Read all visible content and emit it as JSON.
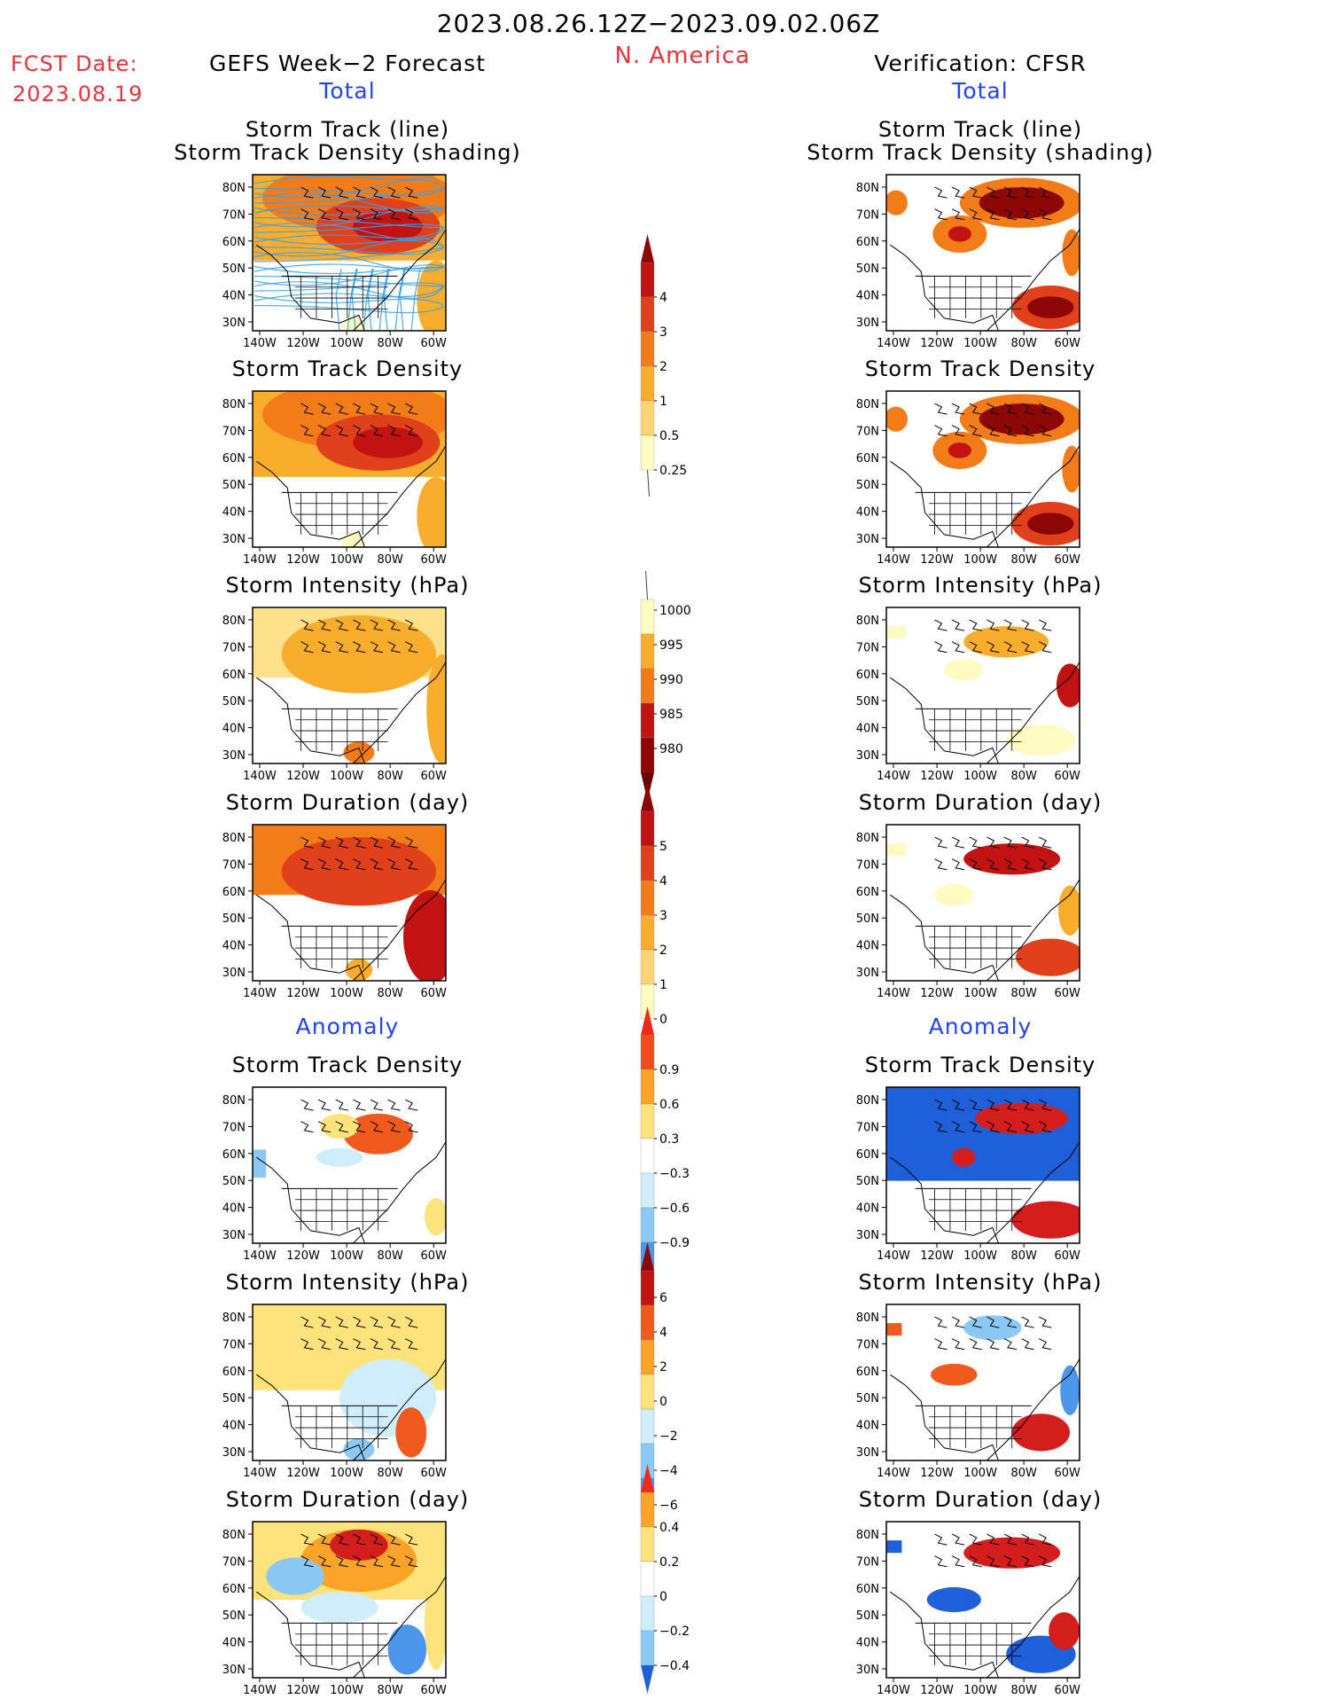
{
  "header": {
    "period": "2023.08.26.12Z−2023.09.02.06Z",
    "region": "N. America",
    "fcst_label": "FCST Date:",
    "fcst_date": "2023.08.19",
    "left_title": "GEFS Week−2 Forecast",
    "right_title": "Verification: CFSR",
    "total_label": "Total",
    "anomaly_label": "Anomaly"
  },
  "colors": {
    "accent_red": "#e8323c",
    "accent_blue": "#2244ee",
    "track_line": "#3aa0e8"
  },
  "panels": [
    {
      "title_l1": "Storm Track (line)",
      "title_l2": "Storm Track Density (shading)"
    },
    {
      "title_l1": "Storm Track Density"
    },
    {
      "title_l1": "Storm Intensity (hPa)"
    },
    {
      "title_l1": "Storm Duration (day)"
    },
    {
      "title_l1": "Storm Track Density"
    },
    {
      "title_l1": "Storm Intensity (hPa)"
    },
    {
      "title_l1": "Storm Duration (day)"
    }
  ],
  "chart_data": [
    {
      "type": "heatmap",
      "section": "Total",
      "variable": "Storm Track Density",
      "legend_ticks": [
        "4",
        "3",
        "2",
        "1",
        "0.5",
        "0.25"
      ]
    },
    {
      "type": "heatmap",
      "section": "Total",
      "variable": "Storm Intensity (hPa)",
      "legend_ticks": [
        "1000",
        "995",
        "990",
        "985",
        "980"
      ]
    },
    {
      "type": "heatmap",
      "section": "Total",
      "variable": "Storm Duration (day)",
      "legend_ticks": [
        "5",
        "4",
        "3",
        "2",
        "1",
        "0"
      ]
    },
    {
      "type": "heatmap",
      "section": "Anomaly",
      "variable": "Storm Track Density",
      "legend_ticks": [
        "0.9",
        "0.6",
        "0.3",
        "−0.3",
        "−0.6",
        "−0.9"
      ]
    },
    {
      "type": "heatmap",
      "section": "Anomaly",
      "variable": "Storm Intensity (hPa)",
      "legend_ticks": [
        "6",
        "4",
        "2",
        "0",
        "−2",
        "−4",
        "−6"
      ]
    },
    {
      "type": "heatmap",
      "section": "Anomaly",
      "variable": "Storm Duration (day)",
      "legend_ticks": [
        "0.4",
        "0.2",
        "0",
        "−0.2",
        "−0.4"
      ]
    }
  ],
  "axes": {
    "lat_ticks": [
      "80N",
      "70N",
      "60N",
      "50N",
      "40N",
      "30N"
    ],
    "lon_ticks": [
      "140W",
      "120W",
      "100W",
      "80W",
      "60W"
    ]
  }
}
